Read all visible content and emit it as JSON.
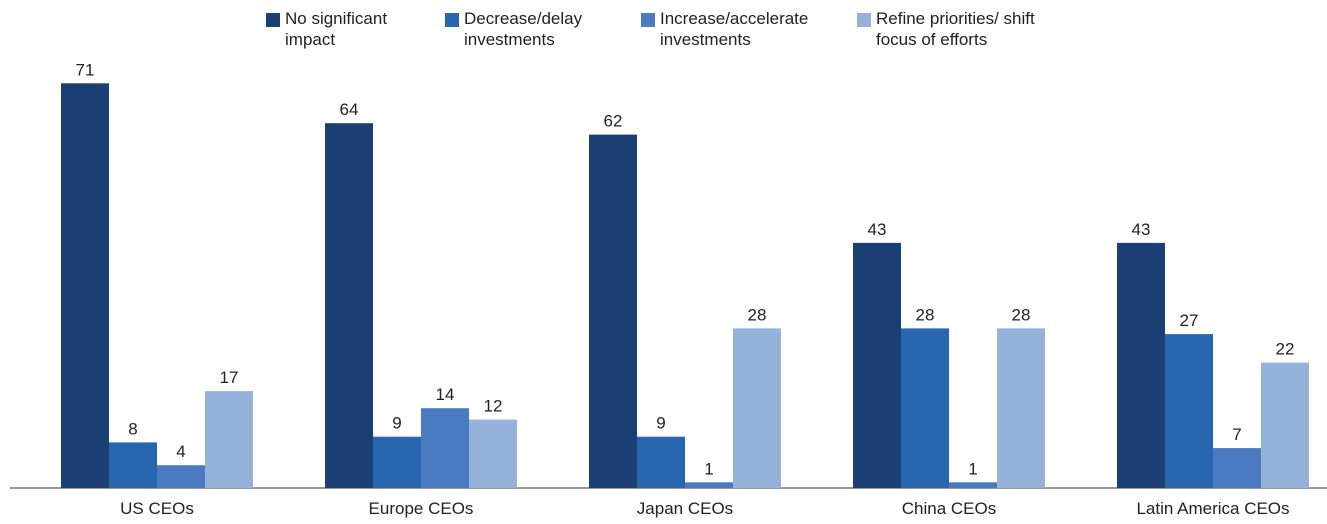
{
  "chart_data": {
    "type": "bar",
    "categories": [
      "US CEOs",
      "Europe CEOs",
      "Japan CEOs",
      "China CEOs",
      "Latin America CEOs"
    ],
    "series": [
      {
        "name": "No significant impact",
        "color": "#1a3f73",
        "values": [
          71,
          64,
          62,
          43,
          43
        ]
      },
      {
        "name": "Decrease/delay investments",
        "color": "#2866b0",
        "values": [
          8,
          9,
          9,
          28,
          27
        ]
      },
      {
        "name": "Increase/accelerate investments",
        "color": "#4a7bc0",
        "values": [
          4,
          14,
          1,
          1,
          7
        ]
      },
      {
        "name": "Refine priorities/ shift focus of efforts",
        "color": "#95b3da",
        "values": [
          17,
          12,
          28,
          28,
          22
        ]
      }
    ],
    "legend": "top"
  }
}
